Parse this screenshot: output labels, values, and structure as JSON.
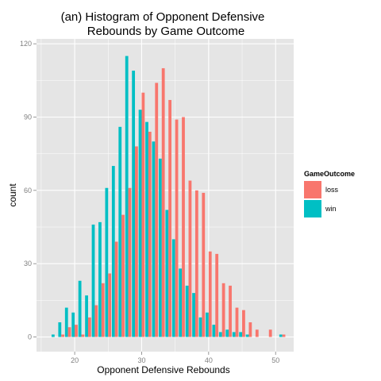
{
  "chart_data": {
    "type": "bar",
    "title": "(an) Histogram of Opponent Defensive Rebounds by Game Outcome",
    "title_lines": [
      "(an) Histogram of Opponent Defensive",
      "Rebounds by Game Outcome"
    ],
    "xlabel": "Opponent Defensive Rebounds",
    "ylabel": "count",
    "x_ticks": [
      20,
      30,
      40,
      50
    ],
    "y_ticks": [
      0,
      30,
      60,
      90,
      120
    ],
    "xlim": [
      14.3,
      52.7
    ],
    "ylim": [
      -6,
      122
    ],
    "legend": {
      "title": "GameOutcome",
      "placement": "right",
      "entries": [
        "loss",
        "win"
      ]
    },
    "grid": true,
    "colors": {
      "loss": "#F8766D",
      "win": "#00BFC4",
      "panel": "#E5E5E5",
      "grid": "#FFFFFF"
    },
    "bins": [
      17,
      18,
      19,
      20,
      21,
      22,
      23,
      24,
      25,
      26,
      27,
      28,
      29,
      30,
      31,
      32,
      33,
      34,
      35,
      36,
      37,
      38,
      39,
      40,
      41,
      42,
      43,
      44,
      45,
      46,
      47,
      48,
      49,
      50,
      51
    ],
    "series": [
      {
        "name": "loss",
        "values": [
          0,
          1,
          4,
          5,
          1,
          8,
          13,
          22,
          26,
          39,
          50,
          61,
          78,
          100,
          84,
          104,
          110,
          97,
          89,
          90,
          64,
          60,
          59,
          35,
          34,
          22,
          21,
          12,
          11,
          6,
          3,
          0,
          3,
          0,
          1
        ]
      },
      {
        "name": "win",
        "values": [
          1,
          6,
          12,
          10,
          23,
          17,
          46,
          47,
          61,
          70,
          86,
          115,
          109,
          93,
          88,
          80,
          73,
          52,
          40,
          28,
          21,
          18,
          8,
          10,
          5,
          2,
          3,
          2,
          2,
          1,
          0,
          0,
          0,
          0,
          1
        ]
      }
    ]
  }
}
